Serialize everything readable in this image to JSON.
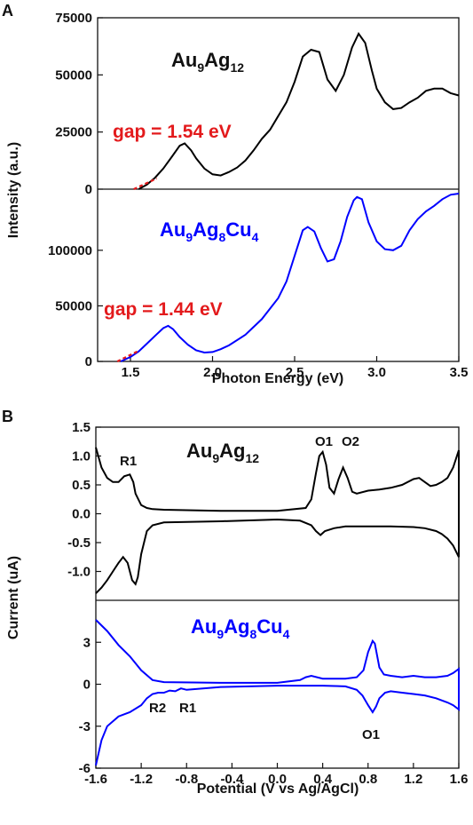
{
  "panel_a": {
    "label": "A",
    "ylabel": "Intensity (a.u.)",
    "xlabel": "Photon Energy (eV)",
    "top_label": {
      "base": "Au",
      "sub1": "9",
      "mid": "Ag",
      "sub2": "12"
    },
    "bottom_label": {
      "base": "Au",
      "sub1": "9",
      "mid": "Ag",
      "sub2": "8",
      "end": "Cu",
      "sub3": "4"
    },
    "gap_top": "gap = 1.54 eV",
    "gap_bottom": "gap = 1.44 eV"
  },
  "panel_b": {
    "label": "B",
    "ylabel": "Current (uA)",
    "xlabel": "Potential (V vs Ag/AgCl)",
    "top_label": {
      "base": "Au",
      "sub1": "9",
      "mid": "Ag",
      "sub2": "12"
    },
    "bottom_label": {
      "base": "Au",
      "sub1": "9",
      "mid": "Ag",
      "sub2": "8",
      "end": "Cu",
      "sub3": "4"
    },
    "peaks_top": [
      "R1",
      "O1",
      "O2"
    ],
    "peaks_bottom": [
      "R2",
      "R1",
      "O1"
    ]
  },
  "chart_data": [
    {
      "type": "line",
      "name": "A-top",
      "xlim": [
        1.3,
        3.5
      ],
      "ylim": [
        0,
        75000
      ],
      "yticks": [
        0,
        25000,
        50000,
        75000
      ],
      "color": "#000000",
      "x": [
        1.55,
        1.6,
        1.65,
        1.7,
        1.75,
        1.8,
        1.83,
        1.87,
        1.9,
        1.95,
        2.0,
        2.05,
        2.1,
        2.15,
        2.2,
        2.25,
        2.3,
        2.35,
        2.4,
        2.45,
        2.5,
        2.55,
        2.6,
        2.65,
        2.7,
        2.75,
        2.8,
        2.85,
        2.89,
        2.93,
        2.97,
        3.0,
        3.05,
        3.1,
        3.15,
        3.2,
        3.25,
        3.3,
        3.35,
        3.4,
        3.45,
        3.5
      ],
      "y": [
        0,
        2000,
        5000,
        9000,
        14000,
        19000,
        20000,
        17000,
        13500,
        9000,
        6500,
        6000,
        7500,
        9500,
        12500,
        17000,
        22000,
        26000,
        32000,
        38000,
        47000,
        58000,
        61000,
        60000,
        48000,
        43000,
        50000,
        62000,
        68000,
        64000,
        52000,
        44000,
        38000,
        35000,
        35500,
        38000,
        40000,
        43000,
        44000,
        44000,
        42000,
        41000
      ]
    },
    {
      "type": "line",
      "name": "A-bottom",
      "xlim": [
        1.3,
        3.5
      ],
      "ylim": [
        0,
        155000
      ],
      "yticks": [
        0,
        50000,
        100000
      ],
      "color": "#0000ff",
      "x": [
        1.44,
        1.5,
        1.55,
        1.6,
        1.65,
        1.7,
        1.73,
        1.76,
        1.8,
        1.85,
        1.9,
        1.95,
        2.0,
        2.05,
        2.1,
        2.2,
        2.3,
        2.4,
        2.45,
        2.5,
        2.55,
        2.58,
        2.62,
        2.66,
        2.7,
        2.74,
        2.78,
        2.82,
        2.86,
        2.88,
        2.91,
        2.95,
        3.0,
        3.05,
        3.1,
        3.15,
        3.2,
        3.25,
        3.3,
        3.35,
        3.4,
        3.45,
        3.5
      ],
      "y": [
        0,
        4000,
        9000,
        16000,
        23000,
        30000,
        32000,
        29000,
        22000,
        15000,
        10000,
        8000,
        8500,
        11000,
        14500,
        24000,
        38000,
        57000,
        72000,
        95000,
        118000,
        121000,
        117000,
        102000,
        90000,
        92000,
        108000,
        130000,
        145000,
        148000,
        146000,
        125000,
        108000,
        101000,
        100000,
        104000,
        118000,
        128000,
        135000,
        140000,
        146000,
        150000,
        151000
      ]
    },
    {
      "type": "line",
      "name": "B-top",
      "xlim": [
        -1.6,
        1.6
      ],
      "ylim": [
        -1.5,
        1.5
      ],
      "yticks": [
        -1.0,
        -0.5,
        0.0,
        0.5,
        1.0,
        1.5
      ],
      "color": "#000000",
      "x": [
        -1.6,
        -1.55,
        -1.5,
        -1.45,
        -1.4,
        -1.35,
        -1.3,
        -1.27,
        -1.25,
        -1.2,
        -1.15,
        -1.1,
        -1.0,
        -0.5,
        0.0,
        0.25,
        0.3,
        0.34,
        0.37,
        0.4,
        0.43,
        0.46,
        0.5,
        0.54,
        0.58,
        0.62,
        0.66,
        0.7,
        0.8,
        0.9,
        1.0,
        1.1,
        1.2,
        1.25,
        1.3,
        1.35,
        1.4,
        1.45,
        1.5,
        1.55,
        1.6,
        1.6,
        1.55,
        1.5,
        1.45,
        1.4,
        1.3,
        1.2,
        1.0,
        0.8,
        0.6,
        0.5,
        0.42,
        0.38,
        0.34,
        0.3,
        0.2,
        0.0,
        -0.5,
        -1.0,
        -1.1,
        -1.15,
        -1.2,
        -1.23,
        -1.25,
        -1.28,
        -1.32,
        -1.36,
        -1.4,
        -1.45,
        -1.5,
        -1.55,
        -1.6
      ],
      "y": [
        1.15,
        0.8,
        0.62,
        0.55,
        0.55,
        0.65,
        0.68,
        0.55,
        0.35,
        0.15,
        0.1,
        0.08,
        0.07,
        0.05,
        0.05,
        0.1,
        0.25,
        0.7,
        1.0,
        1.07,
        0.85,
        0.45,
        0.35,
        0.6,
        0.8,
        0.62,
        0.38,
        0.35,
        0.4,
        0.42,
        0.45,
        0.5,
        0.6,
        0.62,
        0.55,
        0.48,
        0.5,
        0.55,
        0.62,
        0.8,
        1.1,
        -0.75,
        -0.55,
        -0.43,
        -0.35,
        -0.3,
        -0.25,
        -0.23,
        -0.22,
        -0.22,
        -0.22,
        -0.25,
        -0.3,
        -0.37,
        -0.3,
        -0.2,
        -0.12,
        -0.1,
        -0.13,
        -0.15,
        -0.2,
        -0.3,
        -0.7,
        -1.1,
        -1.22,
        -1.15,
        -0.85,
        -0.75,
        -0.85,
        -1.0,
        -1.15,
        -1.28,
        -1.38
      ]
    },
    {
      "type": "line",
      "name": "B-bottom",
      "xlim": [
        -1.6,
        1.6
      ],
      "ylim": [
        -6,
        6
      ],
      "yticks": [
        -6,
        -3,
        0,
        3
      ],
      "color": "#0000ff",
      "x": [
        -1.6,
        -1.5,
        -1.4,
        -1.3,
        -1.2,
        -1.1,
        -1.0,
        -0.5,
        0.0,
        0.2,
        0.25,
        0.3,
        0.4,
        0.6,
        0.7,
        0.76,
        0.8,
        0.84,
        0.86,
        0.9,
        0.94,
        1.0,
        1.1,
        1.2,
        1.3,
        1.4,
        1.5,
        1.55,
        1.6,
        1.6,
        1.55,
        1.5,
        1.4,
        1.3,
        1.2,
        1.1,
        1.0,
        0.95,
        0.9,
        0.87,
        0.84,
        0.8,
        0.75,
        0.7,
        0.6,
        0.4,
        0.2,
        0.0,
        -0.5,
        -0.8,
        -0.85,
        -0.9,
        -0.95,
        -1.0,
        -1.05,
        -1.1,
        -1.15,
        -1.2,
        -1.3,
        -1.4,
        -1.5,
        -1.55,
        -1.6
      ],
      "y": [
        4.6,
        3.8,
        2.8,
        2.0,
        1.0,
        0.3,
        0.15,
        0.1,
        0.1,
        0.3,
        0.5,
        0.6,
        0.4,
        0.4,
        0.5,
        1.0,
        2.3,
        3.1,
        2.9,
        1.2,
        0.7,
        0.6,
        0.5,
        0.6,
        0.5,
        0.5,
        0.6,
        0.8,
        1.1,
        -1.8,
        -1.5,
        -1.3,
        -1.0,
        -0.8,
        -0.7,
        -0.6,
        -0.5,
        -0.6,
        -1.0,
        -1.6,
        -2.0,
        -1.5,
        -0.8,
        -0.4,
        -0.15,
        -0.1,
        -0.1,
        -0.1,
        -0.2,
        -0.4,
        -0.3,
        -0.5,
        -0.45,
        -0.6,
        -0.6,
        -0.7,
        -1.0,
        -1.5,
        -2.0,
        -2.3,
        -3.0,
        -4.0,
        -5.8
      ]
    }
  ]
}
